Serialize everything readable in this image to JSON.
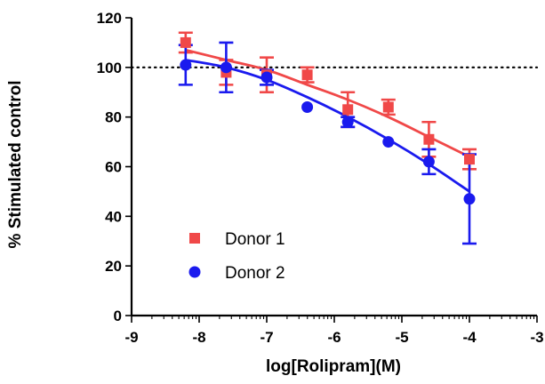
{
  "chart_data": {
    "type": "scatter",
    "xlabel": "log[Rolipram](M)",
    "ylabel": "% Stimulated control",
    "xlim": [
      -9,
      -3
    ],
    "ylim": [
      0,
      120
    ],
    "xticks": [
      "-9",
      "-8",
      "-7",
      "-6",
      "-5",
      "-4",
      "-3"
    ],
    "yticks": [
      "0",
      "20",
      "40",
      "60",
      "80",
      "100",
      "120"
    ],
    "reference_line": {
      "y": 100,
      "style": "dotted"
    },
    "grid": false,
    "legend": "lower-left",
    "series": [
      {
        "name": "Donor 1",
        "marker": "square",
        "color": "#f04848",
        "x": [
          -8.2,
          -7.6,
          -7.0,
          -6.4,
          -5.8,
          -5.2,
          -4.6,
          -4.0
        ],
        "y": [
          110,
          98,
          97,
          97,
          83,
          84,
          71,
          63
        ],
        "error": [
          4,
          5,
          7,
          3,
          7,
          3,
          7,
          4
        ],
        "fit_y": [
          107,
          103,
          99,
          93,
          87,
          80,
          72,
          64
        ]
      },
      {
        "name": "Donor 2",
        "marker": "circle",
        "color": "#1a1aee",
        "x": [
          -8.2,
          -7.6,
          -7.0,
          -6.4,
          -5.8,
          -5.2,
          -4.6,
          -4.0
        ],
        "y": [
          101,
          100,
          96,
          84,
          78,
          70,
          62,
          47
        ],
        "error": [
          8,
          10,
          3,
          0,
          2,
          0,
          5,
          18
        ],
        "fit_y": [
          103,
          100,
          95,
          88,
          80,
          71,
          61,
          50
        ]
      }
    ]
  }
}
